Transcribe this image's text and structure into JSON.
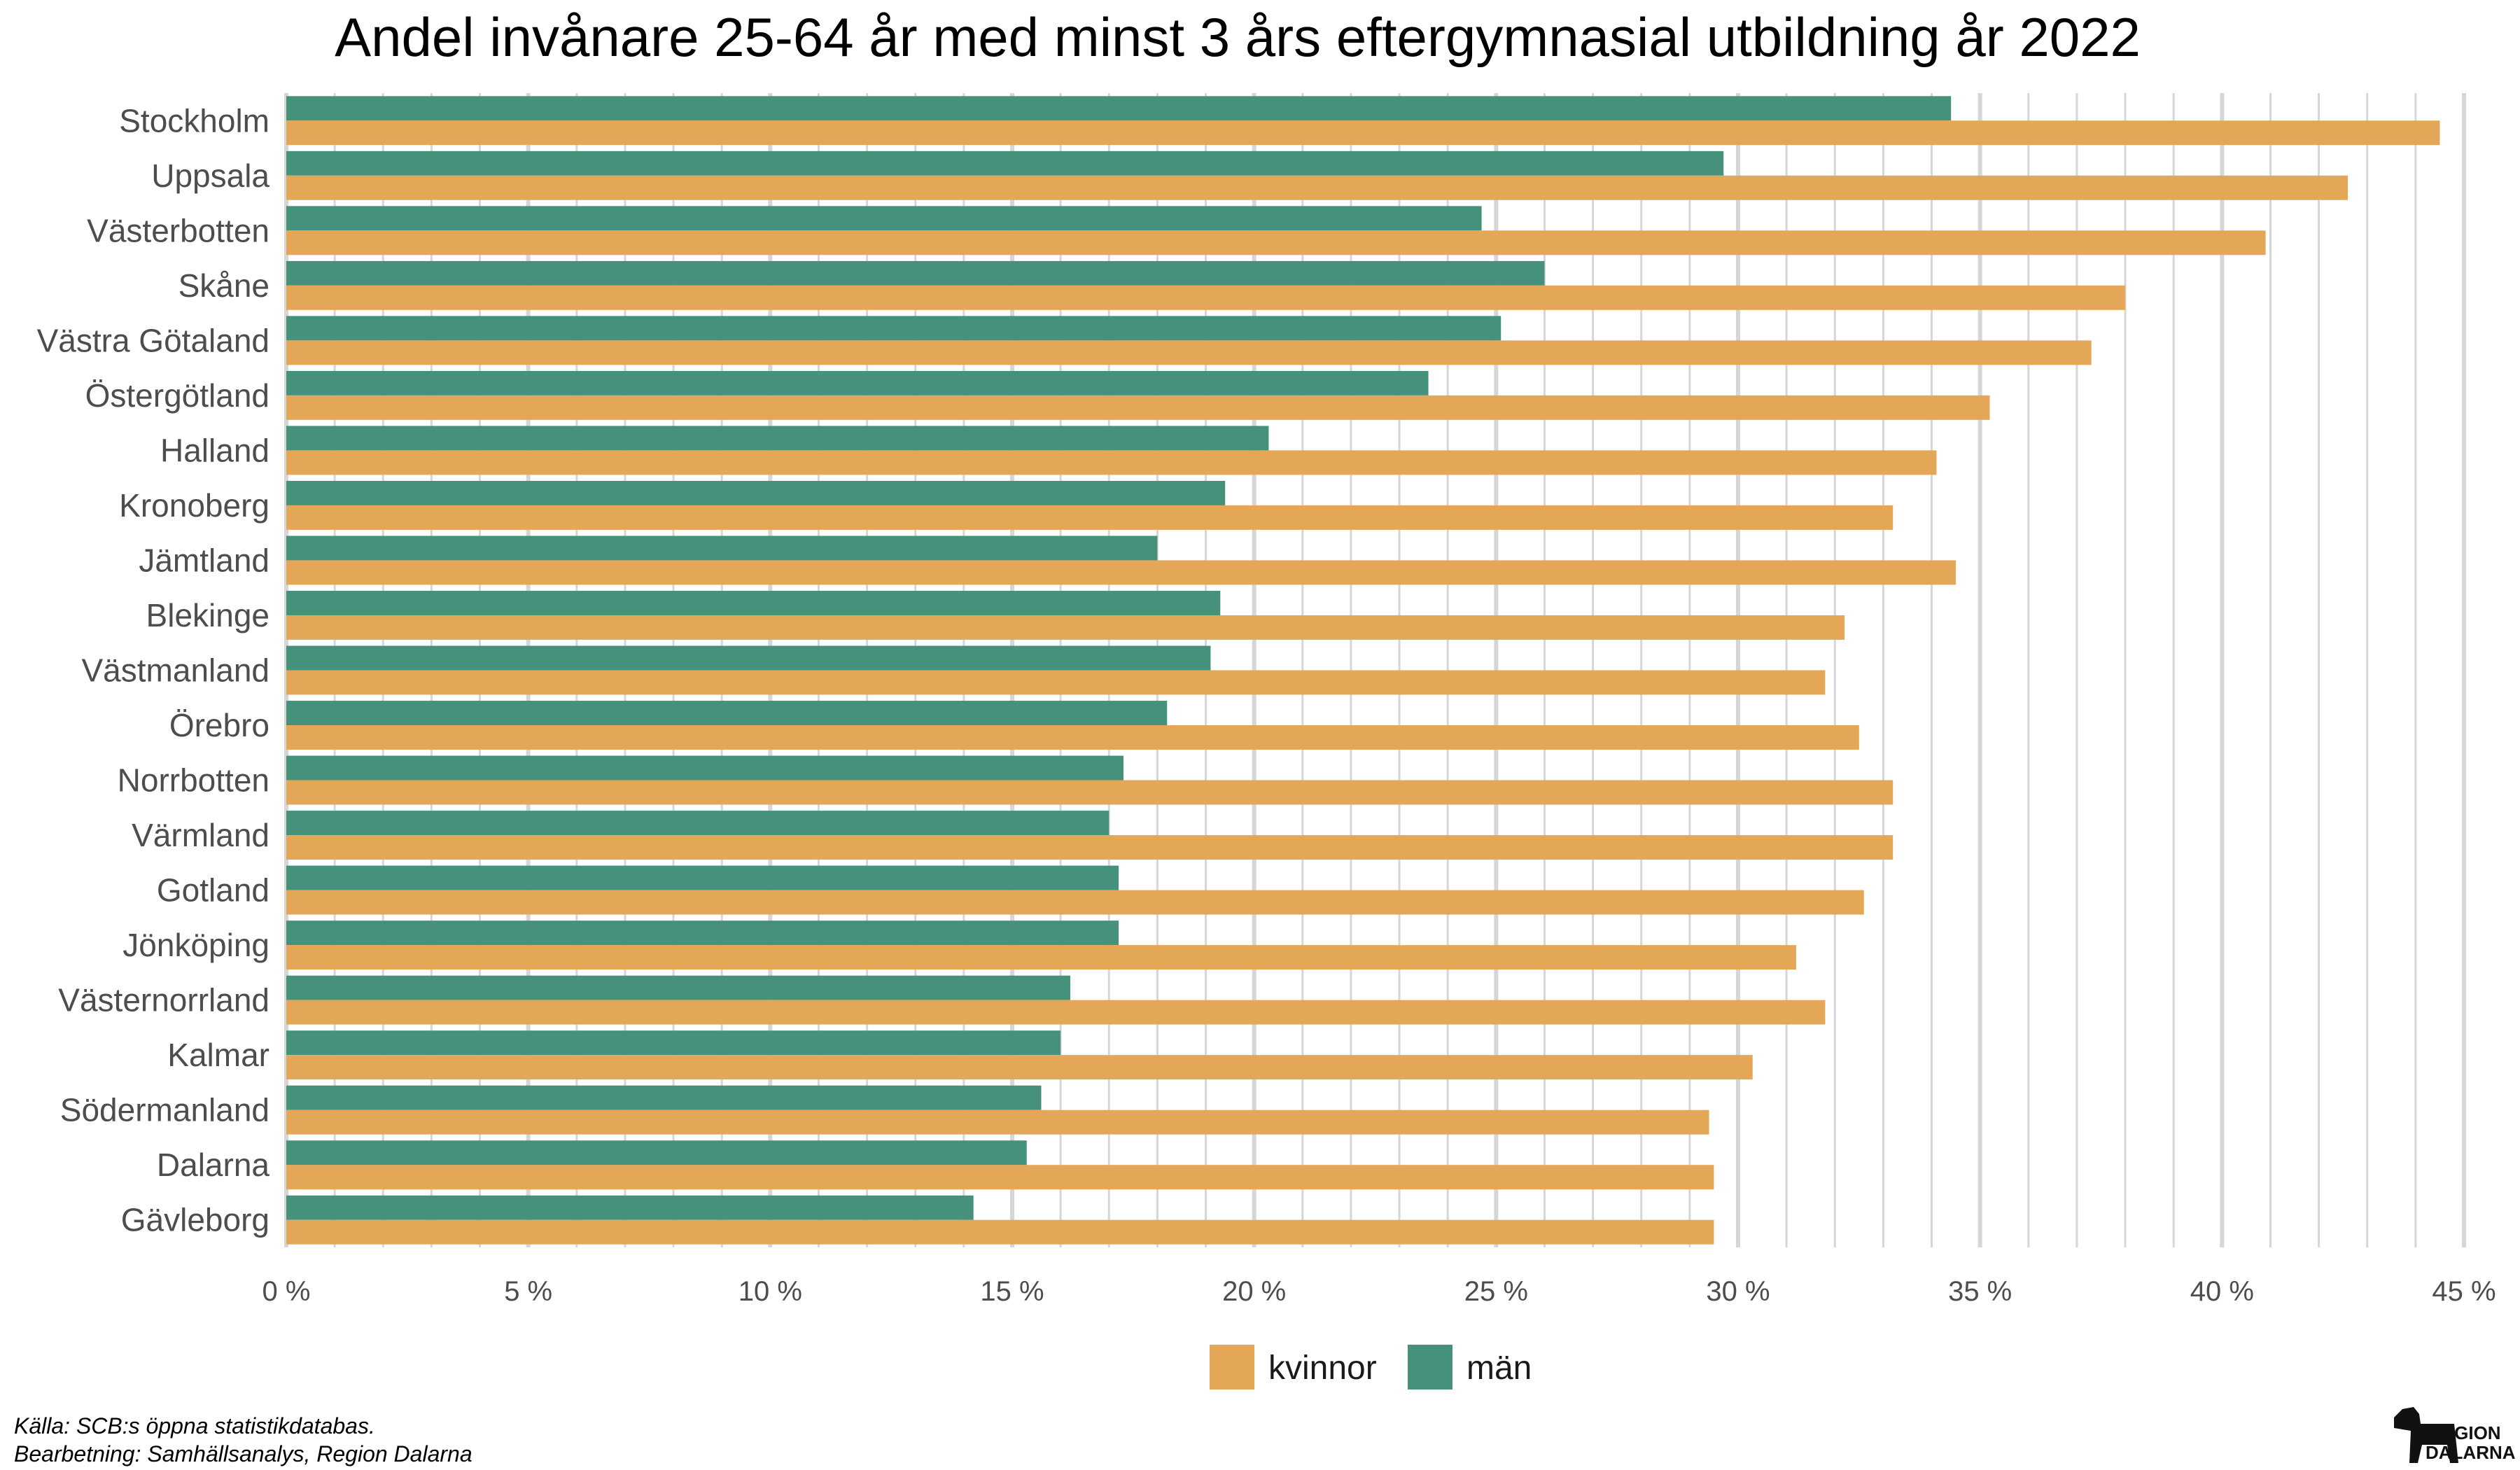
{
  "chart_data": {
    "type": "bar",
    "orientation": "horizontal",
    "title": "Andel invånare 25-64 år med minst 3 års eftergymnasial utbildning år 2022",
    "categories": [
      "Stockholm",
      "Uppsala",
      "Västerbotten",
      "Skåne",
      "Västra Götaland",
      "Östergötland",
      "Halland",
      "Kronoberg",
      "Jämtland",
      "Blekinge",
      "Västmanland",
      "Örebro",
      "Norrbotten",
      "Värmland",
      "Gotland",
      "Jönköping",
      "Västernorrland",
      "Kalmar",
      "Södermanland",
      "Dalarna",
      "Gävleborg"
    ],
    "series": [
      {
        "name": "män",
        "color": "#45917b",
        "values": [
          34.4,
          29.7,
          24.7,
          26.0,
          25.1,
          23.6,
          20.3,
          19.4,
          18.0,
          19.3,
          19.1,
          18.2,
          17.3,
          17.0,
          17.2,
          17.2,
          16.2,
          16.0,
          15.6,
          15.3,
          14.2
        ]
      },
      {
        "name": "kvinnor",
        "color": "#e3a757",
        "values": [
          44.5,
          42.6,
          40.9,
          38.0,
          37.3,
          35.2,
          34.1,
          33.2,
          34.5,
          32.2,
          31.8,
          32.5,
          33.2,
          33.2,
          32.6,
          31.2,
          31.8,
          30.3,
          29.4,
          29.5,
          29.5
        ]
      }
    ],
    "xlim": [
      0,
      45
    ],
    "x_ticks": [
      0,
      5,
      10,
      15,
      20,
      25,
      30,
      35,
      40,
      45
    ],
    "x_tick_labels": [
      "0 %",
      "5 %",
      "10 %",
      "15 %",
      "20 %",
      "25 %",
      "30 %",
      "35 %",
      "40 %",
      "45 %"
    ],
    "xlabel": "",
    "ylabel": "",
    "grid": true,
    "legend": {
      "position": "bottom",
      "entries": [
        {
          "label": "kvinnor",
          "color": "#e3a757"
        },
        {
          "label": "män",
          "color": "#45917b"
        }
      ]
    }
  },
  "footer": {
    "source": "Källa: SCB:s öppna statistikdatabas.",
    "processing": "Bearbetning: Samhällsanalys, Region Dalarna"
  },
  "logo": {
    "line1": "REGION",
    "line2": "DALARNA"
  }
}
